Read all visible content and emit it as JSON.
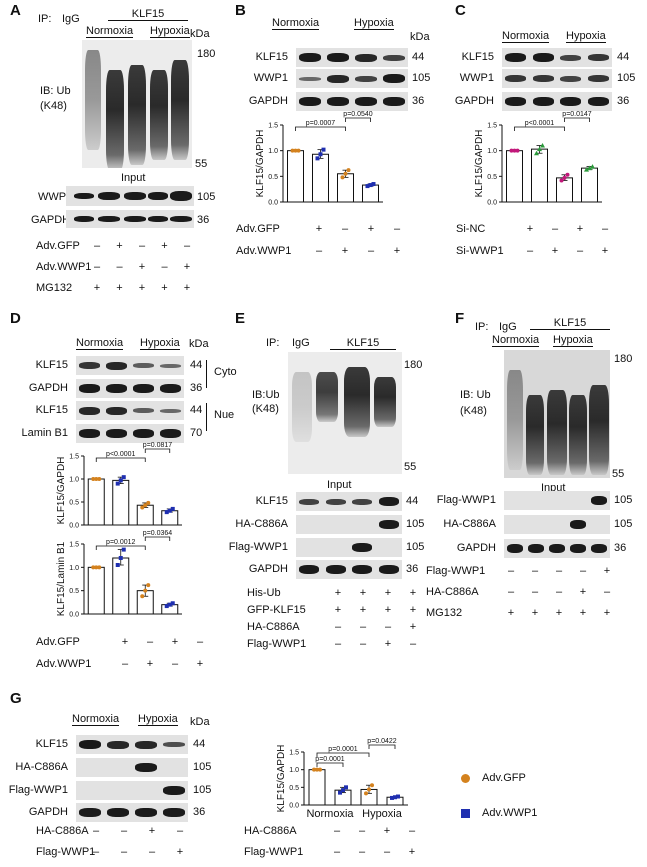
{
  "panels": {
    "A": {
      "letter": "A",
      "ip_prefix": "IP:",
      "ip_igg": "IgG",
      "ip_target": "KLF15",
      "normoxia": "Normoxia",
      "hypoxia": "Hypoxia",
      "kda": "kDa",
      "ib_line1": "IB: Ub",
      "ib_line2": "(K48)",
      "mw_top": "180",
      "mw_bottom": "55",
      "input": "Input",
      "blots": [
        {
          "label": "WWP1",
          "mw": "105"
        },
        {
          "label": "GAPDH",
          "mw": "36"
        }
      ],
      "conditions": [
        {
          "label": "Adv.GFP",
          "signs": [
            "–",
            "+",
            "–",
            "+",
            "–"
          ]
        },
        {
          "label": "Adv.WWP1",
          "signs": [
            "–",
            "–",
            "+",
            "–",
            "+"
          ]
        },
        {
          "label": "MG132",
          "signs": [
            "+",
            "+",
            "+",
            "+",
            "+"
          ]
        }
      ]
    },
    "B": {
      "letter": "B",
      "normoxia": "Normoxia",
      "hypoxia": "Hypoxia",
      "kda": "kDa",
      "blots": [
        {
          "label": "KLF15",
          "mw": "44"
        },
        {
          "label": "WWP1",
          "mw": "105"
        },
        {
          "label": "GAPDH",
          "mw": "36"
        }
      ],
      "conditions": [
        {
          "label": "Adv.GFP",
          "signs": [
            "+",
            "–",
            "+",
            "–"
          ]
        },
        {
          "label": "Adv.WWP1",
          "signs": [
            "–",
            "+",
            "–",
            "+"
          ]
        }
      ]
    },
    "C": {
      "letter": "C",
      "normoxia": "Normoxia",
      "hypoxia": "Hypoxia",
      "blots": [
        {
          "label": "KLF15",
          "mw": "44"
        },
        {
          "label": "WWP1",
          "mw": "105"
        },
        {
          "label": "GAPDH",
          "mw": "36"
        }
      ],
      "conditions": [
        {
          "label": "Si-NC",
          "signs": [
            "+",
            "–",
            "+",
            "–"
          ]
        },
        {
          "label": "Si-WWP1",
          "signs": [
            "–",
            "+",
            "–",
            "+"
          ]
        }
      ]
    },
    "D": {
      "letter": "D",
      "normoxia": "Normoxia",
      "hypoxia": "Hypoxia",
      "kda": "kDa",
      "blots": [
        {
          "label": "KLF15",
          "mw": "44"
        },
        {
          "label": "GAPDH",
          "mw": "36"
        },
        {
          "label": "KLF15",
          "mw": "44"
        },
        {
          "label": "Lamin B1",
          "mw": "70"
        }
      ],
      "cyto": "Cyto",
      "nue": "Nue",
      "conditions": [
        {
          "label": "Adv.GFP",
          "signs": [
            "+",
            "–",
            "+",
            "–"
          ]
        },
        {
          "label": "Adv.WWP1",
          "signs": [
            "–",
            "+",
            "–",
            "+"
          ]
        }
      ]
    },
    "E": {
      "letter": "E",
      "ip_prefix": "IP:",
      "ip_igg": "IgG",
      "ip_target": "KLF15",
      "ib_line1": "IB:Ub",
      "ib_line2": "(K48)",
      "mw_top": "180",
      "mw_bottom": "55",
      "input": "Input",
      "blots": [
        {
          "label": "KLF15",
          "mw": "44"
        },
        {
          "label": "HA-C886A",
          "mw": "105"
        },
        {
          "label": "Flag-WWP1",
          "mw": "105"
        },
        {
          "label": "GAPDH",
          "mw": "36"
        }
      ],
      "conditions": [
        {
          "label": "His-Ub",
          "signs": [
            "+",
            "+",
            "+",
            "+"
          ]
        },
        {
          "label": "GFP-KLF15",
          "signs": [
            "+",
            "+",
            "+",
            "+"
          ]
        },
        {
          "label": "HA-C886A",
          "signs": [
            "–",
            "–",
            "–",
            "+"
          ]
        },
        {
          "label": "Flag-WWP1",
          "signs": [
            "–",
            "–",
            "+",
            "–"
          ]
        }
      ]
    },
    "F": {
      "letter": "F",
      "ip_prefix": "IP:",
      "ip_igg": "IgG",
      "ip_target": "KLF15",
      "normoxia": "Normoxia",
      "hypoxia": "Hypoxia",
      "ib_line1": "IB: Ub",
      "ib_line2": "(K48)",
      "mw_top": "180",
      "mw_bottom": "55",
      "input": "Input",
      "blots": [
        {
          "label": "Flag-WWP1",
          "mw": "105"
        },
        {
          "label": "HA-C886A",
          "mw": "105"
        },
        {
          "label": "GAPDH",
          "mw": "36"
        }
      ],
      "conditions": [
        {
          "label": "Flag-WWP1",
          "signs": [
            "–",
            "–",
            "–",
            "–",
            "+"
          ]
        },
        {
          "label": "HA-C886A",
          "signs": [
            "–",
            "–",
            "–",
            "+",
            "–"
          ]
        },
        {
          "label": "MG132",
          "signs": [
            "+",
            "+",
            "+",
            "+",
            "+"
          ]
        }
      ]
    },
    "G": {
      "letter": "G",
      "normoxia": "Normoxia",
      "hypoxia": "Hypoxia",
      "kda": "kDa",
      "blots": [
        {
          "label": "KLF15",
          "mw": "44"
        },
        {
          "label": "HA-C886A",
          "mw": "105"
        },
        {
          "label": "Flag-WWP1",
          "mw": "105"
        },
        {
          "label": "GAPDH",
          "mw": "36"
        }
      ],
      "conditions": [
        {
          "label": "HA-C886A",
          "signs": [
            "–",
            "–",
            "+",
            "–"
          ]
        },
        {
          "label": "Flag-WWP1",
          "signs": [
            "–",
            "–",
            "–",
            "+"
          ]
        }
      ],
      "chart_conditions": [
        {
          "label": "HA-C886A",
          "signs": [
            "–",
            "–",
            "+",
            "–"
          ]
        },
        {
          "label": "Flag-WWP1",
          "signs": [
            "–",
            "–",
            "–",
            "+"
          ]
        }
      ],
      "legend": [
        {
          "label": "Adv.GFP",
          "color": "#d4821e",
          "shape": "circle"
        },
        {
          "label": "Adv.WWP1",
          "color": "#1f2fb0",
          "shape": "square"
        }
      ]
    }
  },
  "chart_data": [
    {
      "panel": "B",
      "type": "bar",
      "ylabel": "KLF15/GAPDH",
      "ylim": [
        0,
        1.5
      ],
      "yticks": [
        "0.0",
        "0.5",
        "1.0",
        "1.5"
      ],
      "values": [
        1.0,
        0.93,
        0.55,
        0.33
      ],
      "points": [
        [
          1.0,
          1.0,
          1.0
        ],
        [
          0.85,
          0.93,
          1.02
        ],
        [
          0.48,
          0.55,
          0.62
        ],
        [
          0.31,
          0.33,
          0.35
        ]
      ],
      "point_colors": [
        "#d4821e",
        "#1f2fb0",
        "#d4821e",
        "#1f2fb0"
      ],
      "brackets": [
        {
          "from": 0,
          "to": 2,
          "label": "p=0.0007"
        },
        {
          "from": 2,
          "to": 3,
          "label": "p=0.0540"
        }
      ]
    },
    {
      "panel": "C",
      "type": "bar",
      "ylabel": "KLF15/GAPDH",
      "ylim": [
        0,
        1.5
      ],
      "yticks": [
        "0.0",
        "0.5",
        "1.0",
        "1.5"
      ],
      "values": [
        1.0,
        1.03,
        0.47,
        0.66
      ],
      "points": [
        [
          1.0,
          1.0,
          1.0
        ],
        [
          0.95,
          1.03,
          1.1
        ],
        [
          0.42,
          0.47,
          0.53
        ],
        [
          0.63,
          0.66,
          0.69
        ]
      ],
      "point_colors": [
        "#c2187a",
        "#2a9a3a",
        "#c2187a",
        "#2a9a3a"
      ],
      "brackets": [
        {
          "from": 0,
          "to": 2,
          "label": "p<0.0001"
        },
        {
          "from": 2,
          "to": 3,
          "label": "p=0.0147"
        }
      ]
    },
    {
      "panel": "D",
      "type": "bar",
      "ylabel": "KLF15/GAPDH",
      "ylim": [
        0,
        1.5
      ],
      "yticks": [
        "0.0",
        "0.5",
        "1.0",
        "1.5"
      ],
      "values": [
        1.0,
        0.97,
        0.43,
        0.31
      ],
      "points": [
        [
          1.0,
          1.0,
          1.0
        ],
        [
          0.9,
          0.97,
          1.04
        ],
        [
          0.38,
          0.43,
          0.48
        ],
        [
          0.28,
          0.31,
          0.35
        ]
      ],
      "point_colors": [
        "#d4821e",
        "#1f2fb0",
        "#d4821e",
        "#1f2fb0"
      ],
      "brackets": [
        {
          "from": 0,
          "to": 2,
          "label": "p<0.0001"
        },
        {
          "from": 2,
          "to": 3,
          "label": "p=0.0817"
        }
      ]
    },
    {
      "panel": "D",
      "type": "bar",
      "ylabel": "KLF15/Lamin B1",
      "ylim": [
        0,
        1.5
      ],
      "yticks": [
        "0.0",
        "0.5",
        "1.0",
        "1.5"
      ],
      "values": [
        1.0,
        1.2,
        0.5,
        0.2
      ],
      "points": [
        [
          1.0,
          1.0,
          1.0
        ],
        [
          1.05,
          1.2,
          1.38
        ],
        [
          0.38,
          0.5,
          0.62
        ],
        [
          0.17,
          0.2,
          0.23
        ]
      ],
      "point_colors": [
        "#d4821e",
        "#1f2fb0",
        "#d4821e",
        "#1f2fb0"
      ],
      "brackets": [
        {
          "from": 0,
          "to": 2,
          "label": "p=0.0012"
        },
        {
          "from": 2,
          "to": 3,
          "label": "p=0.0364"
        }
      ]
    },
    {
      "panel": "G",
      "type": "bar",
      "ylabel": "KLF15/GAPDH",
      "ylim": [
        0,
        1.5
      ],
      "yticks": [
        "0.0",
        "0.5",
        "1.0",
        "1.5"
      ],
      "group_labels": [
        "Normoxia",
        "Hypoxia"
      ],
      "values": [
        1.0,
        0.42,
        0.44,
        0.22
      ],
      "points": [
        [
          1.0,
          1.0,
          1.0
        ],
        [
          0.35,
          0.42,
          0.5
        ],
        [
          0.33,
          0.44,
          0.56
        ],
        [
          0.2,
          0.22,
          0.24
        ]
      ],
      "point_colors": [
        "#d4821e",
        "#1f2fb0",
        "#d4821e",
        "#1f2fb0"
      ],
      "brackets": [
        {
          "from": 0,
          "to": 2,
          "label": "p=0.0001"
        },
        {
          "from": 0,
          "to": 1,
          "label": "p=0.0001"
        },
        {
          "from": 2,
          "to": 3,
          "label": "p=0.0422"
        }
      ]
    }
  ]
}
